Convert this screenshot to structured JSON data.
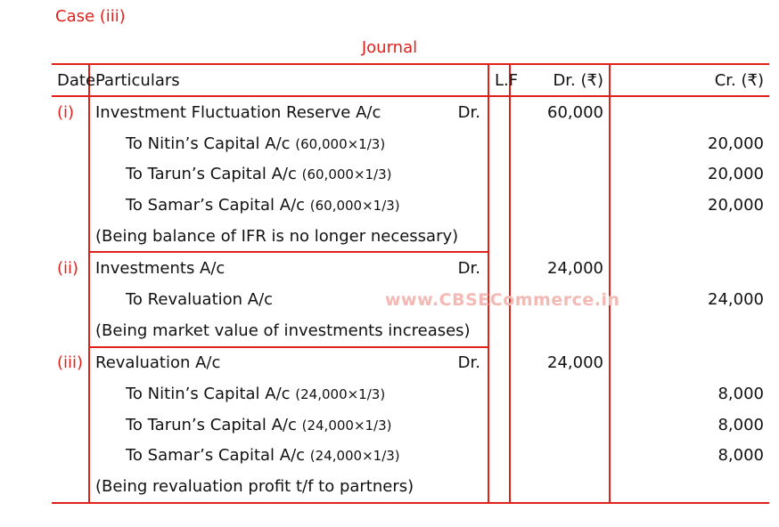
{
  "case_title": "Case (iii)",
  "journal_title": "Journal",
  "headers": {
    "date": "Date",
    "particulars": "Particulars",
    "lf": "L.F",
    "dr": "Dr. (₹)",
    "cr": "Cr. (₹)"
  },
  "entries": [
    {
      "date": "(i)",
      "debit": {
        "account": "Investment Fluctuation Reserve A/c",
        "dr_mark": "Dr.",
        "amount": "60,000"
      },
      "credits": [
        {
          "account": "To Nitin’s Capital A/c",
          "calc": "(60,000×1/3)",
          "amount": "20,000"
        },
        {
          "account": "To Tarun’s Capital A/c",
          "calc": "(60,000×1/3)",
          "amount": "20,000"
        },
        {
          "account": "To Samar’s Capital A/c",
          "calc": "(60,000×1/3)",
          "amount": "20,000"
        }
      ],
      "narration": "(Being balance of IFR is no longer necessary)"
    },
    {
      "date": "(ii)",
      "debit": {
        "account": "Investments A/c",
        "dr_mark": "Dr.",
        "amount": "24,000"
      },
      "credits": [
        {
          "account": "To Revaluation A/c",
          "calc": "",
          "amount": "24,000"
        }
      ],
      "narration": "(Being market value of investments increases)"
    },
    {
      "date": "(iii)",
      "debit": {
        "account": "Revaluation A/c",
        "dr_mark": "Dr.",
        "amount": "24,000"
      },
      "credits": [
        {
          "account": "To Nitin’s Capital A/c",
          "calc": "(24,000×1/3)",
          "amount": "8,000"
        },
        {
          "account": "To Tarun’s Capital A/c",
          "calc": "(24,000×1/3)",
          "amount": "8,000"
        },
        {
          "account": "To Samar’s Capital A/c",
          "calc": "(24,000×1/3)",
          "amount": "8,000"
        }
      ],
      "narration": "(Being revaluation profit t/f to partners)"
    }
  ],
  "watermark": "www.CBSECommerce.in",
  "colors": {
    "accent": "#e0211b",
    "text": "#111111",
    "watermark": "#f3b9b5"
  }
}
